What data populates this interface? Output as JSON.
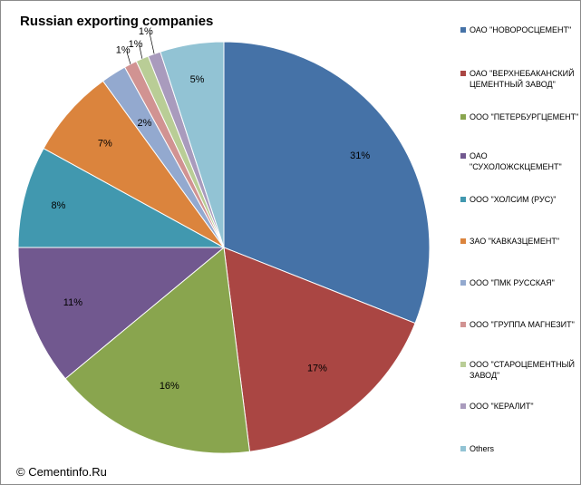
{
  "chart_data": {
    "type": "pie",
    "title": "Russian exporting companies",
    "slices": [
      {
        "label": "ОАО \"НОВОРОСЦЕМЕНТ\"",
        "value": 31,
        "display": "31%",
        "color": "#4572a7"
      },
      {
        "label": "ОАО \"ВЕРХНЕБАКАНСКИЙ ЦЕМЕНТНЫЙ ЗАВОД\"",
        "value": 17,
        "display": "17%",
        "color": "#aa4643"
      },
      {
        "label": "ООО \"ПЕТЕРБУРГЦЕМЕНТ\"",
        "value": 16,
        "display": "16%",
        "color": "#89a54e"
      },
      {
        "label": "ОАО \"СУХОЛОЖСКЦЕМЕНТ\"",
        "value": 11,
        "display": "11%",
        "color": "#71588f"
      },
      {
        "label": "ООО \"ХОЛСИМ (РУС)\"",
        "value": 8,
        "display": "8%",
        "color": "#4198af"
      },
      {
        "label": "ЗАО \"КАВКАЗЦЕМЕНТ\"",
        "value": 7,
        "display": "7%",
        "color": "#db843d"
      },
      {
        "label": "ООО \"ПМК РУССКАЯ\"",
        "value": 2,
        "display": "2%",
        "color": "#93a9cf"
      },
      {
        "label": "ООО \"ГРУППА МАГНЕЗИТ\"",
        "value": 1,
        "display": "1%",
        "color": "#d19392"
      },
      {
        "label": "ООО \"СТАРОЦЕМЕНТНЫЙ ЗАВОД\"",
        "value": 1,
        "display": "1%",
        "color": "#b9cd96"
      },
      {
        "label": "ООО \"КЕРАЛИТ\"",
        "value": 1,
        "display": "1%",
        "color": "#a99bbd"
      },
      {
        "label": "Others",
        "value": 5,
        "display": "5%",
        "color": "#92c3d4"
      }
    ],
    "legend_position": "right"
  },
  "copyright": "© Cementinfo.Ru"
}
